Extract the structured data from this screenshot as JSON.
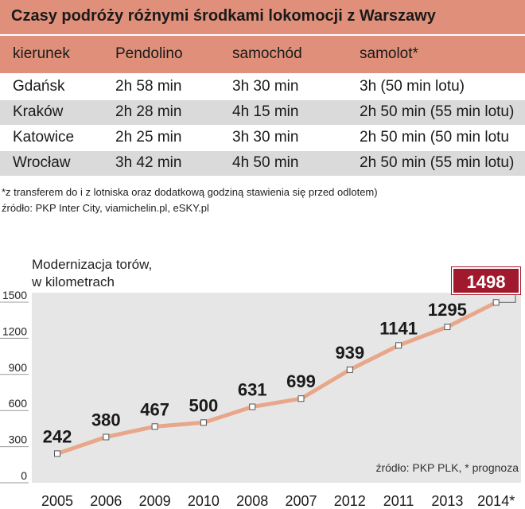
{
  "table": {
    "title": "Czasy podróży różnymi środkami lokomocji z Warszawy",
    "headers": [
      "kierunek",
      "Pendolino",
      "samochód",
      "samolot*"
    ],
    "rows": [
      [
        "Gdańsk",
        "2h 58 min",
        "3h 30 min",
        "3h (50 min lotu)"
      ],
      [
        "Kraków",
        "2h 28 min",
        "4h 15 min",
        "2h 50 min (55 min lotu)"
      ],
      [
        "Katowice",
        "2h 25 min",
        "3h 30 min",
        "2h 50 min (50 min lotu"
      ],
      [
        "Wrocław",
        "3h 42 min",
        "4h 50 min",
        "2h 50 min (55 min lotu)"
      ]
    ],
    "footnote": "*z transferem do i z lotniska oraz dodatkową godziną stawienia się przed odlotem)",
    "source": "źródło: PKP Inter City, viamichelin.pl, eSKY.pl"
  },
  "colors": {
    "header_bg": "#e0907a",
    "row_shade": "#dadada",
    "line": "#e8a78a",
    "plot_bg": "#e6e6e6",
    "highlight": "#a0192c"
  },
  "chart_data": {
    "type": "line",
    "title_lines": [
      "Modernizacja torów,",
      "w kilometrach"
    ],
    "categories": [
      "2005",
      "2006",
      "2009",
      "2010",
      "2008",
      "2007",
      "2012",
      "2011",
      "2013",
      "2014*"
    ],
    "values": [
      242,
      380,
      467,
      500,
      631,
      699,
      939,
      1141,
      1295,
      1498
    ],
    "yticks": [
      0,
      300,
      600,
      900,
      1200,
      1500
    ],
    "ylim": [
      0,
      1500
    ],
    "highlight_label": "1498",
    "source": "źródło: PKP PLK, * prognoza"
  }
}
